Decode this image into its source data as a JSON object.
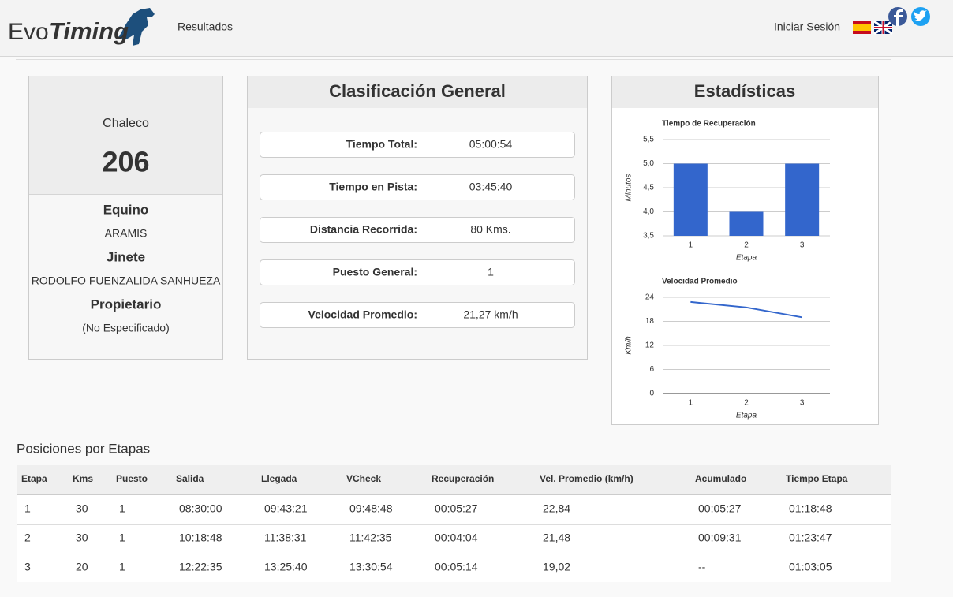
{
  "header": {
    "logo_evo": "Evo",
    "logo_timing": "Timing",
    "nav": "Resultados",
    "login": "Iniciar Sesión"
  },
  "rider_card": {
    "label": "Chaleco",
    "number": "206",
    "sections": [
      {
        "heading": "Equino",
        "value": "ARAMIS"
      },
      {
        "heading": "Jinete",
        "value": "RODOLFO FUENZALIDA SANHUEZA"
      },
      {
        "heading": "Propietario",
        "value": "(No Especificado)"
      }
    ]
  },
  "general": {
    "title": "Clasificación General",
    "rows": [
      [
        "Tiempo Total:",
        "05:00:54"
      ],
      [
        "Tiempo en Pista:",
        "03:45:40"
      ],
      [
        "Distancia Recorrida:",
        "80 Kms."
      ],
      [
        "Puesto General:",
        "1"
      ],
      [
        "Velocidad Promedio:",
        "21,27 km/h"
      ]
    ]
  },
  "stats": {
    "title": "Estadísticas"
  },
  "chart_data": [
    {
      "type": "bar",
      "title": "Tiempo de Recuperación",
      "categories": [
        "1",
        "2",
        "3"
      ],
      "values": [
        5,
        4,
        5
      ],
      "color": "#3366cc",
      "ylim": [
        3.5,
        5.5
      ],
      "yticks": [
        {
          "value": 3.5,
          "label": "3,5"
        },
        {
          "value": 4,
          "label": "4,0"
        },
        {
          "value": 4.5,
          "label": "4,5"
        },
        {
          "value": 5,
          "label": "5,0"
        },
        {
          "value": 5.5,
          "label": "5,5"
        }
      ],
      "y_label": "Minutos",
      "x_label": "Etapa",
      "grid": true
    },
    {
      "type": "line",
      "title": "Velocidad Promedio",
      "categories": [
        "1",
        "2",
        "3"
      ],
      "values": [
        22.84,
        21.48,
        19.02
      ],
      "color": "#3366cc",
      "ylim": [
        0,
        24
      ],
      "yticks": [
        0,
        6,
        12,
        18,
        24
      ],
      "y_label": "Km/h",
      "x_label": "Etapa",
      "grid": true
    }
  ],
  "stages": {
    "title": "Posiciones por Etapas",
    "columns": [
      "Etapa",
      "Kms",
      "Puesto",
      "Salida",
      "Llegada",
      "VCheck",
      "Recuperación",
      "Vel. Promedio (km/h)",
      "Acumulado",
      "Tiempo Etapa"
    ],
    "rows": [
      [
        "1",
        "30",
        "1",
        "08:30:00",
        "09:43:21",
        "09:48:48",
        "00:05:27",
        "22,84",
        "00:05:27",
        "01:18:48"
      ],
      [
        "2",
        "30",
        "1",
        "10:18:48",
        "11:38:31",
        "11:42:35",
        "00:04:04",
        "21,48",
        "00:09:31",
        "01:23:47"
      ],
      [
        "3",
        "20",
        "1",
        "12:22:35",
        "13:25:40",
        "13:30:54",
        "00:05:14",
        "19,02",
        "--",
        "01:03:05"
      ]
    ]
  }
}
